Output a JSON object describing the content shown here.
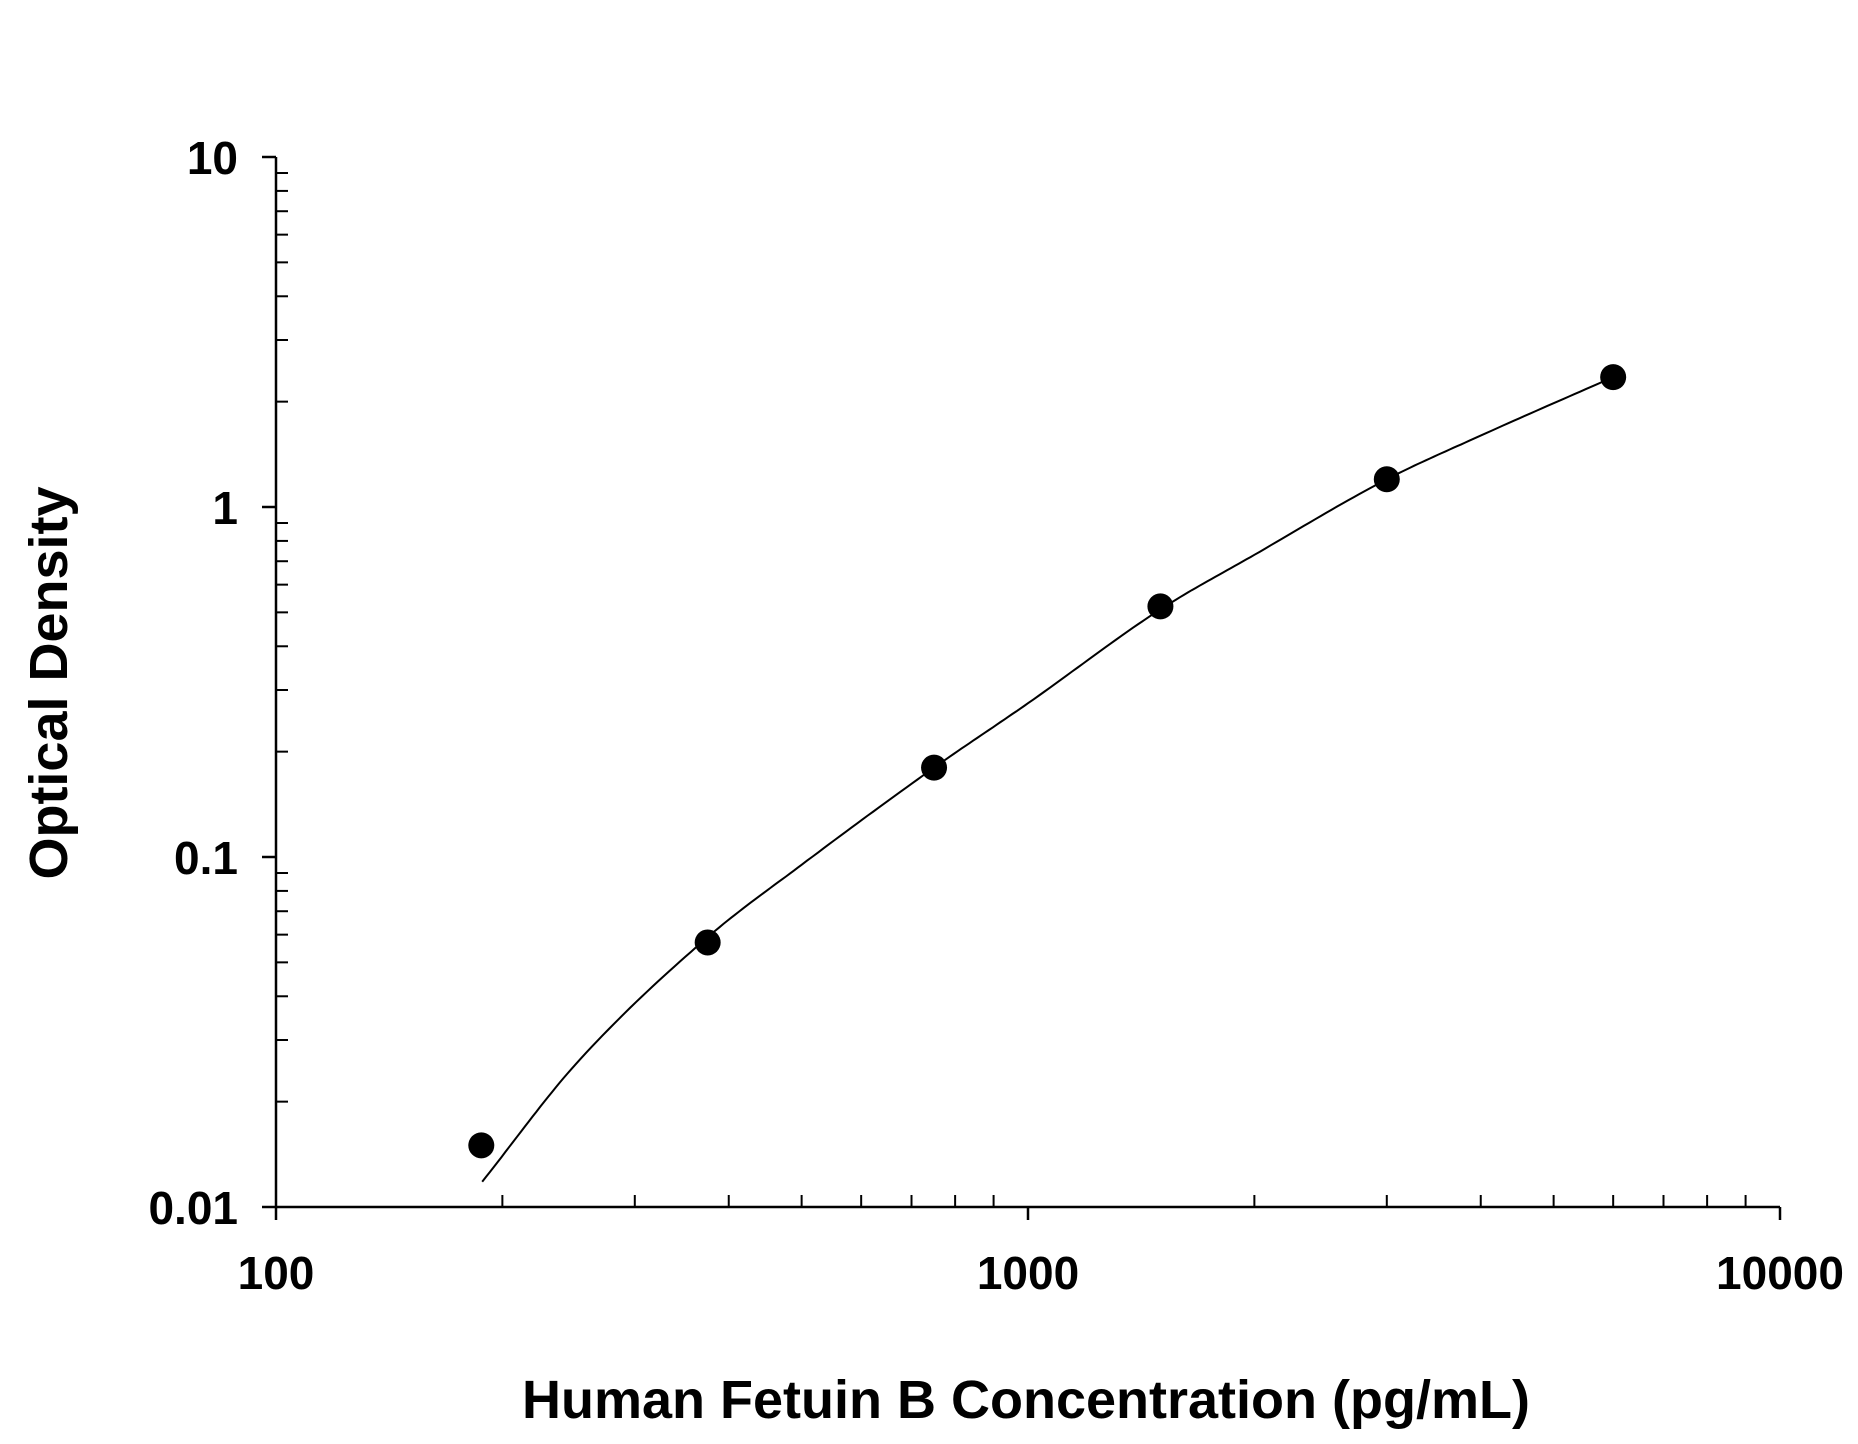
{
  "chart_data": {
    "type": "scatter",
    "title": "",
    "xlabel": "Human Fetuin B Concentration (pg/mL)",
    "ylabel": "Optical Density",
    "x_scale": "log",
    "y_scale": "log",
    "xlim": [
      100,
      10000
    ],
    "ylim": [
      0.01,
      10
    ],
    "x_tick_labels": [
      "100",
      "1000",
      "10000"
    ],
    "y_tick_labels": [
      "0.01",
      "0.1",
      "1",
      "10"
    ],
    "grid": false,
    "legend": "none",
    "series": [
      {
        "points": [
          {
            "x": 187.5,
            "y": 0.015
          },
          {
            "x": 375,
            "y": 0.057
          },
          {
            "x": 750,
            "y": 0.18
          },
          {
            "x": 1500,
            "y": 0.52
          },
          {
            "x": 3000,
            "y": 1.2
          },
          {
            "x": 6000,
            "y": 2.35
          }
        ]
      }
    ],
    "fit_curve": {
      "type": "smooth fit",
      "x_range": [
        188,
        6000
      ],
      "points": [
        {
          "x": 188,
          "y": 0.0118
        },
        {
          "x": 250,
          "y": 0.0255
        },
        {
          "x": 375,
          "y": 0.059
        },
        {
          "x": 500,
          "y": 0.095
        },
        {
          "x": 750,
          "y": 0.18
        },
        {
          "x": 1000,
          "y": 0.275
        },
        {
          "x": 1500,
          "y": 0.51
        },
        {
          "x": 2000,
          "y": 0.73
        },
        {
          "x": 3000,
          "y": 1.2
        },
        {
          "x": 4000,
          "y": 1.6
        },
        {
          "x": 6000,
          "y": 2.35
        }
      ]
    },
    "colors": {
      "marker": "#000000",
      "line": "#000000",
      "axis": "#000000"
    }
  }
}
